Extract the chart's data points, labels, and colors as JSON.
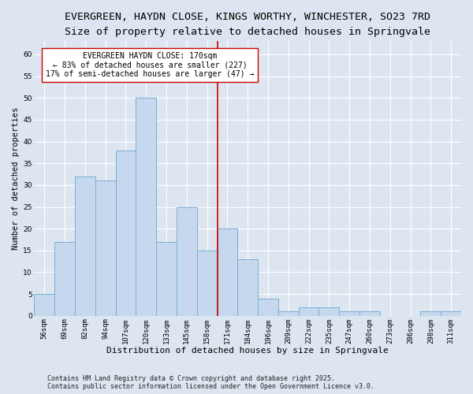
{
  "title_line1": "EVERGREEN, HAYDN CLOSE, KINGS WORTHY, WINCHESTER, SO23 7RD",
  "title_line2": "Size of property relative to detached houses in Springvale",
  "xlabel": "Distribution of detached houses by size in Springvale",
  "ylabel": "Number of detached properties",
  "categories": [
    "56sqm",
    "69sqm",
    "82sqm",
    "94sqm",
    "107sqm",
    "120sqm",
    "133sqm",
    "145sqm",
    "158sqm",
    "171sqm",
    "184sqm",
    "196sqm",
    "209sqm",
    "222sqm",
    "235sqm",
    "247sqm",
    "260sqm",
    "273sqm",
    "286sqm",
    "298sqm",
    "311sqm"
  ],
  "values": [
    5,
    17,
    32,
    31,
    38,
    50,
    17,
    25,
    15,
    20,
    13,
    4,
    1,
    2,
    2,
    1,
    1,
    0,
    0,
    1,
    1
  ],
  "bar_color": "#c5d8ed",
  "bar_edge_color": "#7aafd4",
  "vline_x": 8.5,
  "vline_color": "#cc0000",
  "annotation_text": "EVERGREEN HAYDN CLOSE: 170sqm\n← 83% of detached houses are smaller (227)\n17% of semi-detached houses are larger (47) →",
  "annotation_box_color": "#ffffff",
  "annotation_box_edge": "#cc0000",
  "ylim": [
    0,
    63
  ],
  "yticks": [
    0,
    5,
    10,
    15,
    20,
    25,
    30,
    35,
    40,
    45,
    50,
    55,
    60
  ],
  "background_color": "#dde6f0",
  "grid_color": "#ffffff",
  "footer_text": "Contains HM Land Registry data © Crown copyright and database right 2025.\nContains public sector information licensed under the Open Government Licence v3.0.",
  "title_fontsize": 9.5,
  "subtitle_fontsize": 8.5,
  "xlabel_fontsize": 8,
  "ylabel_fontsize": 7.5,
  "tick_fontsize": 6.5,
  "annotation_fontsize": 7,
  "footer_fontsize": 6
}
